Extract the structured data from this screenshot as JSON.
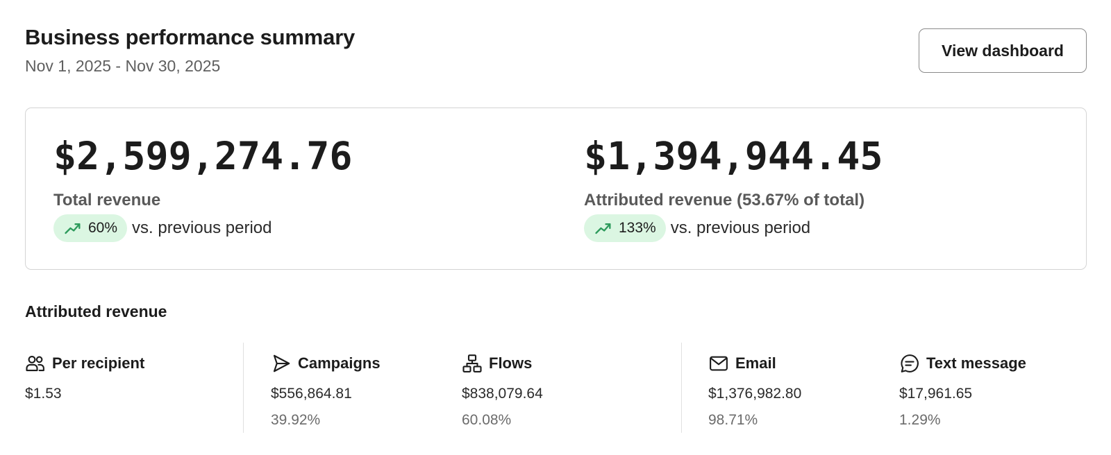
{
  "header": {
    "title": "Business performance summary",
    "date_range": "Nov 1, 2025 - Nov 30, 2025",
    "view_dashboard_label": "View dashboard"
  },
  "summary": {
    "total": {
      "value": "$2,599,274.76",
      "label": "Total revenue",
      "change": "60%",
      "change_suffix": "vs. previous period"
    },
    "attributed": {
      "value": "$1,394,944.45",
      "label": "Attributed revenue (53.67% of total)",
      "change": "133%",
      "change_suffix": "vs. previous period"
    },
    "trend_icon": "trending-up-icon",
    "trend_color": "#2c9a5b",
    "pill_bg": "#dbf6e2"
  },
  "attributed_section": {
    "title": "Attributed revenue",
    "columns": [
      {
        "icon": "people-icon",
        "label": "Per recipient",
        "value": "$1.53",
        "percent": ""
      },
      {
        "icon": "send-icon",
        "label": "Campaigns",
        "value": "$556,864.81",
        "percent": "39.92%"
      },
      {
        "icon": "flow-icon",
        "label": "Flows",
        "value": "$838,079.64",
        "percent": "60.08%"
      },
      {
        "icon": "mail-icon",
        "label": "Email",
        "value": "$1,376,982.80",
        "percent": "98.71%"
      },
      {
        "icon": "chat-icon",
        "label": "Text message",
        "value": "$17,961.65",
        "percent": "1.29%"
      }
    ]
  }
}
